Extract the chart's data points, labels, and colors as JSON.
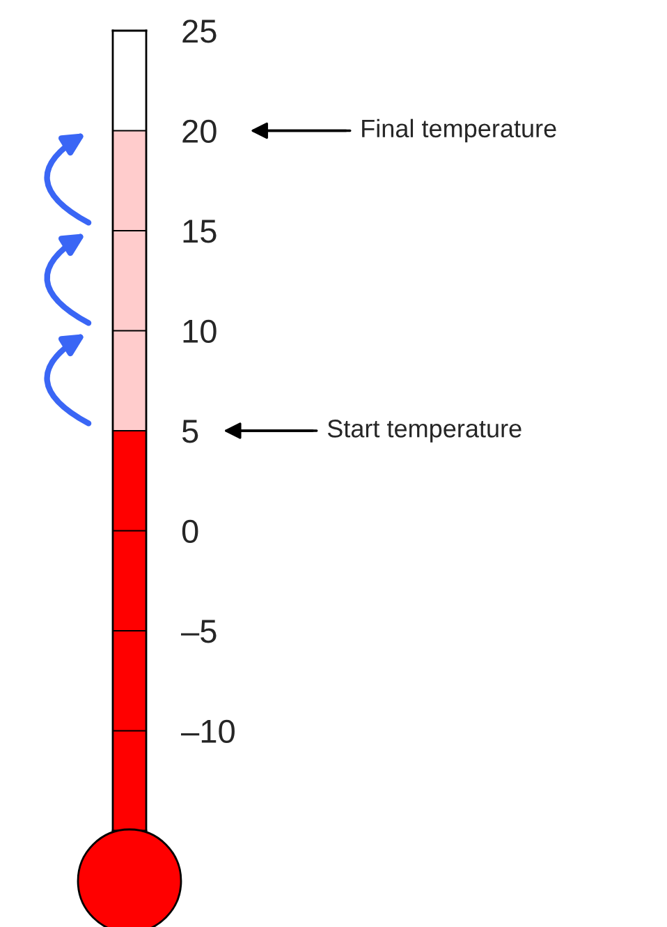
{
  "chart_data": {
    "type": "bar",
    "categories": [
      null
    ],
    "base": [
      -15
    ],
    "values": [
      20
    ],
    "color": "#ff0000",
    "ylim": [
      -15,
      25
    ],
    "yticks": [
      {
        "value": -10,
        "label": "–10"
      },
      {
        "value": -5,
        "label": "–5"
      },
      0,
      5,
      10,
      15,
      20,
      25
    ],
    "grid": "y",
    "bands": [
      {
        "axis": "y",
        "from": 5,
        "to": 20,
        "color": "#ffcccc"
      }
    ],
    "ref_lines": [
      {
        "axis": "y",
        "value": 20,
        "label": "Final temperature"
      },
      {
        "axis": "y",
        "value": 5,
        "label": "Start temperature"
      }
    ]
  }
}
